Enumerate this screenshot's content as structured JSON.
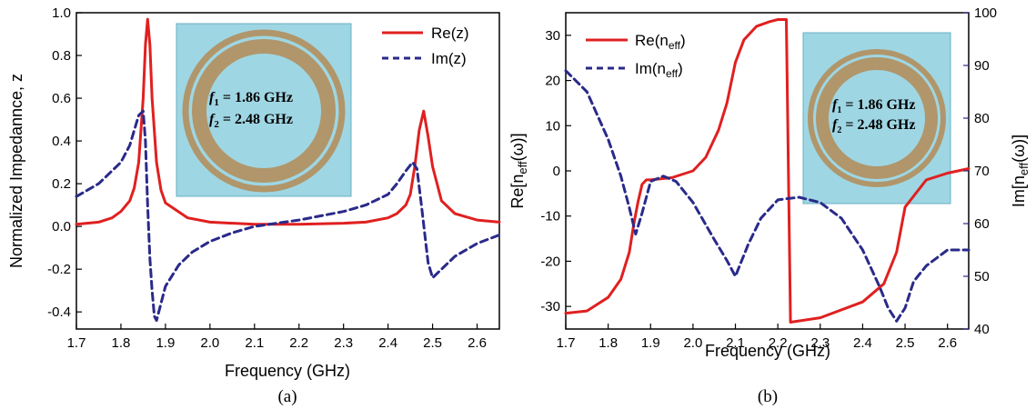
{
  "colors": {
    "re": "#e02020",
    "im": "#2a2a8a",
    "inset_bg": "#9fd6e3",
    "ring": "#b0966a",
    "right_axis": "#2a2a8a"
  },
  "chart_data": [
    {
      "type": "line",
      "panel_label": "(a)",
      "xlabel": "Frequency (GHz)",
      "ylabel": "Normalized Impedannce, z",
      "xlim": [
        1.7,
        2.65
      ],
      "ylim": [
        -0.48,
        1.0
      ],
      "xticks": [
        "1.7",
        "1.8",
        "1.9",
        "2.0",
        "2.1",
        "2.2",
        "2.3",
        "2.4",
        "2.5",
        "2.6"
      ],
      "yticks": [
        "-0.4",
        "-0.2",
        "0.0",
        "0.2",
        "0.4",
        "0.6",
        "0.8",
        "1.0"
      ],
      "legend_position": "top-right",
      "inset": {
        "f1_label": "f",
        "f1_sub": "1",
        "f1_value": " = 1.86 GHz",
        "f2_label": "f",
        "f2_sub": "2",
        "f2_value": " = 2.48 GHz"
      },
      "series": [
        {
          "name": "Re(z)",
          "style": "solid",
          "x": [
            1.7,
            1.75,
            1.78,
            1.8,
            1.82,
            1.83,
            1.84,
            1.85,
            1.855,
            1.86,
            1.865,
            1.87,
            1.88,
            1.89,
            1.9,
            1.95,
            2.0,
            2.1,
            2.2,
            2.3,
            2.35,
            2.4,
            2.42,
            2.44,
            2.45,
            2.46,
            2.47,
            2.48,
            2.49,
            2.5,
            2.52,
            2.55,
            2.6,
            2.65
          ],
          "y": [
            0.01,
            0.02,
            0.04,
            0.07,
            0.12,
            0.18,
            0.3,
            0.6,
            0.85,
            0.97,
            0.85,
            0.6,
            0.3,
            0.17,
            0.11,
            0.04,
            0.02,
            0.01,
            0.01,
            0.015,
            0.02,
            0.04,
            0.06,
            0.1,
            0.15,
            0.28,
            0.45,
            0.54,
            0.42,
            0.28,
            0.12,
            0.06,
            0.03,
            0.02
          ]
        },
        {
          "name": "Im(z)",
          "style": "dashed",
          "x": [
            1.7,
            1.75,
            1.8,
            1.82,
            1.84,
            1.85,
            1.855,
            1.86,
            1.865,
            1.87,
            1.875,
            1.88,
            1.9,
            1.93,
            1.96,
            2.0,
            2.05,
            2.1,
            2.2,
            2.3,
            2.35,
            2.4,
            2.42,
            2.44,
            2.455,
            2.465,
            2.475,
            2.485,
            2.49,
            2.5,
            2.52,
            2.55,
            2.6,
            2.65
          ],
          "y": [
            0.14,
            0.2,
            0.3,
            0.38,
            0.52,
            0.54,
            0.4,
            0.1,
            -0.15,
            -0.3,
            -0.42,
            -0.44,
            -0.28,
            -0.18,
            -0.12,
            -0.07,
            -0.03,
            0.0,
            0.03,
            0.07,
            0.1,
            0.15,
            0.2,
            0.26,
            0.3,
            0.27,
            0.1,
            -0.08,
            -0.17,
            -0.24,
            -0.2,
            -0.14,
            -0.08,
            -0.04
          ]
        }
      ]
    },
    {
      "type": "line",
      "panel_label": "(b)",
      "xlabel": "Frequency (GHz)",
      "ylabel_left_main": "Re[n",
      "ylabel_left_sub": "eff",
      "ylabel_left_tail": "(ω)]",
      "ylabel_right_main": "Im[n",
      "ylabel_right_sub": "eff",
      "ylabel_right_tail": "(ω)]",
      "xlim": [
        1.7,
        2.65
      ],
      "ylim_left": [
        -35,
        35
      ],
      "ylim_right": [
        40,
        100
      ],
      "xticks": [
        "1.7",
        "1.8",
        "1.9",
        "2.0",
        "2.1",
        "2.2",
        "2.3",
        "2.4",
        "2.5",
        "2.6"
      ],
      "yticks_left": [
        "-30",
        "-20",
        "-10",
        "0",
        "10",
        "20",
        "30"
      ],
      "yticks_right": [
        "40",
        "50",
        "60",
        "70",
        "80",
        "90",
        "100"
      ],
      "legend_position": "top-left",
      "inset": {
        "f1_label": "f",
        "f1_sub": "1",
        "f1_value": " = 1.86 GHz",
        "f2_label": "f",
        "f2_sub": "2",
        "f2_value": " = 2.48 GHz"
      },
      "series": [
        {
          "name_main": "Re(n",
          "name_sub": "eff",
          "name_tail": ")",
          "style": "solid",
          "axis": "left",
          "x": [
            1.7,
            1.75,
            1.8,
            1.83,
            1.85,
            1.86,
            1.87,
            1.88,
            1.89,
            1.9,
            1.95,
            2.0,
            2.03,
            2.06,
            2.08,
            2.1,
            2.12,
            2.15,
            2.18,
            2.2,
            2.22,
            2.225,
            2.23,
            2.3,
            2.4,
            2.45,
            2.48,
            2.5,
            2.55,
            2.6,
            2.65
          ],
          "y": [
            -31.5,
            -31,
            -28,
            -24,
            -18,
            -12,
            -7,
            -3,
            -2,
            -2,
            -1.5,
            0,
            3,
            9,
            15,
            24,
            29,
            32,
            33,
            33.5,
            33.5,
            0,
            -33.5,
            -32.5,
            -29,
            -25,
            -18,
            -8,
            -2,
            -0.5,
            0.5
          ]
        },
        {
          "name_main": "Im(n",
          "name_sub": "eff",
          "name_tail": ")",
          "style": "dashed",
          "axis": "right",
          "x": [
            1.7,
            1.75,
            1.8,
            1.83,
            1.85,
            1.865,
            1.88,
            1.9,
            1.93,
            1.96,
            2.0,
            2.05,
            2.08,
            2.1,
            2.13,
            2.16,
            2.2,
            2.25,
            2.3,
            2.35,
            2.4,
            2.44,
            2.46,
            2.48,
            2.5,
            2.52,
            2.55,
            2.6,
            2.65
          ],
          "y": [
            89,
            85,
            76,
            69,
            63,
            58,
            62,
            68,
            69,
            68,
            64,
            57,
            53,
            50,
            56,
            61,
            64.5,
            65,
            64,
            61,
            55,
            48,
            44,
            41.5,
            44,
            49,
            52,
            55,
            55
          ]
        }
      ]
    }
  ]
}
